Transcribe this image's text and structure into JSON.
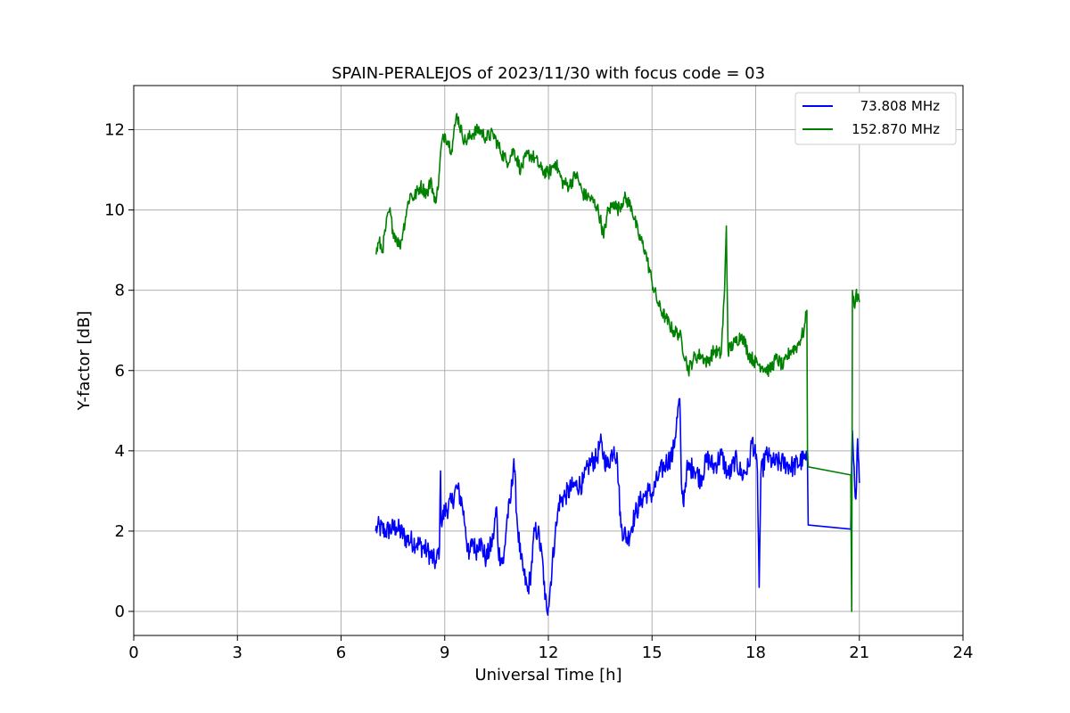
{
  "chart_data": {
    "type": "line",
    "title": "SPAIN-PERALEJOS of 2023/11/30 with focus code = 03",
    "xlabel": "Universal Time [h]",
    "ylabel": "Y-factor [dB]",
    "xlim": [
      0,
      24
    ],
    "ylim": [
      -0.6,
      13.1
    ],
    "xticks": [
      0,
      3,
      6,
      9,
      12,
      15,
      18,
      21,
      24
    ],
    "yticks": [
      0,
      2,
      4,
      6,
      8,
      10,
      12
    ],
    "grid": true,
    "legend_position": "top-right",
    "series": [
      {
        "name": "73.808 MHz",
        "color": "#0000ff",
        "x": [
          7.0,
          7.05,
          7.3,
          7.6,
          7.9,
          8.2,
          8.5,
          8.75,
          8.85,
          8.88,
          8.9,
          9.0,
          9.2,
          9.35,
          9.5,
          9.6,
          9.7,
          9.8,
          9.9,
          10.0,
          10.2,
          10.4,
          10.5,
          10.55,
          10.7,
          10.8,
          10.9,
          11.0,
          11.1,
          11.2,
          11.3,
          11.4,
          11.5,
          11.6,
          11.7,
          11.85,
          11.9,
          12.0,
          12.2,
          12.25,
          12.3,
          12.5,
          12.7,
          13.0,
          13.2,
          13.4,
          13.5,
          13.6,
          13.7,
          13.9,
          14.0,
          14.1,
          14.3,
          14.5,
          14.7,
          14.9,
          15.0,
          15.2,
          15.4,
          15.6,
          15.8,
          15.85,
          15.9,
          16.0,
          16.2,
          16.4,
          16.6,
          16.8,
          17.0,
          17.2,
          17.3,
          17.4,
          17.6,
          17.8,
          17.9,
          18.0,
          18.05,
          18.1,
          18.15,
          18.3,
          18.5,
          18.8,
          19.1,
          19.4,
          19.5,
          19.52,
          20.75,
          20.78,
          20.8,
          20.85,
          20.9,
          20.95,
          21.0
        ],
        "y": [
          2.0,
          2.1,
          2.0,
          2.1,
          1.8,
          1.7,
          1.5,
          1.2,
          1.6,
          3.5,
          2.2,
          2.5,
          2.7,
          3.1,
          2.7,
          2.1,
          1.3,
          1.8,
          1.5,
          1.8,
          1.3,
          1.8,
          2.6,
          1.5,
          1.2,
          2.3,
          2.7,
          3.8,
          2.2,
          1.3,
          0.9,
          0.5,
          1.0,
          2.0,
          2.0,
          1.1,
          0.3,
          0.1,
          2.0,
          2.2,
          2.7,
          2.9,
          3.1,
          3.2,
          3.7,
          3.8,
          4.2,
          3.9,
          3.6,
          4.1,
          3.7,
          2.1,
          1.8,
          2.4,
          2.8,
          3.0,
          2.9,
          3.4,
          3.7,
          3.9,
          5.3,
          3.2,
          2.7,
          3.5,
          3.6,
          3.3,
          3.8,
          3.6,
          3.9,
          3.4,
          3.5,
          3.8,
          3.4,
          3.6,
          4.3,
          3.8,
          3.5,
          0.6,
          3.4,
          3.9,
          3.7,
          3.7,
          3.6,
          3.8,
          3.7,
          2.15,
          2.05,
          3.8,
          4.5,
          3.6,
          2.8,
          4.3,
          3.2
        ]
      },
      {
        "name": "152.870 MHz",
        "color": "#008000",
        "x": [
          7.0,
          7.1,
          7.2,
          7.3,
          7.4,
          7.5,
          7.6,
          7.7,
          7.8,
          7.9,
          8.0,
          8.1,
          8.3,
          8.5,
          8.6,
          8.7,
          8.8,
          8.85,
          8.9,
          9.0,
          9.1,
          9.2,
          9.3,
          9.35,
          9.5,
          9.6,
          9.8,
          10.0,
          10.2,
          10.4,
          10.6,
          10.8,
          11.0,
          11.2,
          11.4,
          11.6,
          11.8,
          12.0,
          12.2,
          12.4,
          12.6,
          12.8,
          13.0,
          13.2,
          13.4,
          13.5,
          13.6,
          13.7,
          13.9,
          14.0,
          14.2,
          14.4,
          14.6,
          14.8,
          15.0,
          15.2,
          15.4,
          15.6,
          15.8,
          16.0,
          16.05,
          16.2,
          16.4,
          16.6,
          16.8,
          17.0,
          17.1,
          17.15,
          17.2,
          17.4,
          17.6,
          17.8,
          18.0,
          18.2,
          18.4,
          18.6,
          18.8,
          19.0,
          19.2,
          19.4,
          19.48,
          19.5,
          19.52,
          20.75,
          20.78,
          20.8,
          20.85,
          20.9,
          21.0
        ],
        "y": [
          8.9,
          9.2,
          9.0,
          9.6,
          10.0,
          9.5,
          9.3,
          9.1,
          9.5,
          10.0,
          10.4,
          10.3,
          10.6,
          10.4,
          10.8,
          10.2,
          10.5,
          11.0,
          11.6,
          11.9,
          11.7,
          11.5,
          12.1,
          12.4,
          11.9,
          11.7,
          11.9,
          12.0,
          11.8,
          11.9,
          11.5,
          11.2,
          11.5,
          11.0,
          11.4,
          11.3,
          11.0,
          10.9,
          11.2,
          10.7,
          10.6,
          10.9,
          10.4,
          10.3,
          10.1,
          9.8,
          9.3,
          9.9,
          10.2,
          10.0,
          10.3,
          10.1,
          9.4,
          9.0,
          8.2,
          7.6,
          7.3,
          7.0,
          6.9,
          6.2,
          6.0,
          6.3,
          6.4,
          6.2,
          6.5,
          6.4,
          8.0,
          9.6,
          6.5,
          6.7,
          6.9,
          6.4,
          6.2,
          6.1,
          6.0,
          6.3,
          6.1,
          6.5,
          6.6,
          7.0,
          7.5,
          4.0,
          3.6,
          3.4,
          0.0,
          8.0,
          7.6,
          7.9,
          7.7
        ]
      }
    ]
  }
}
